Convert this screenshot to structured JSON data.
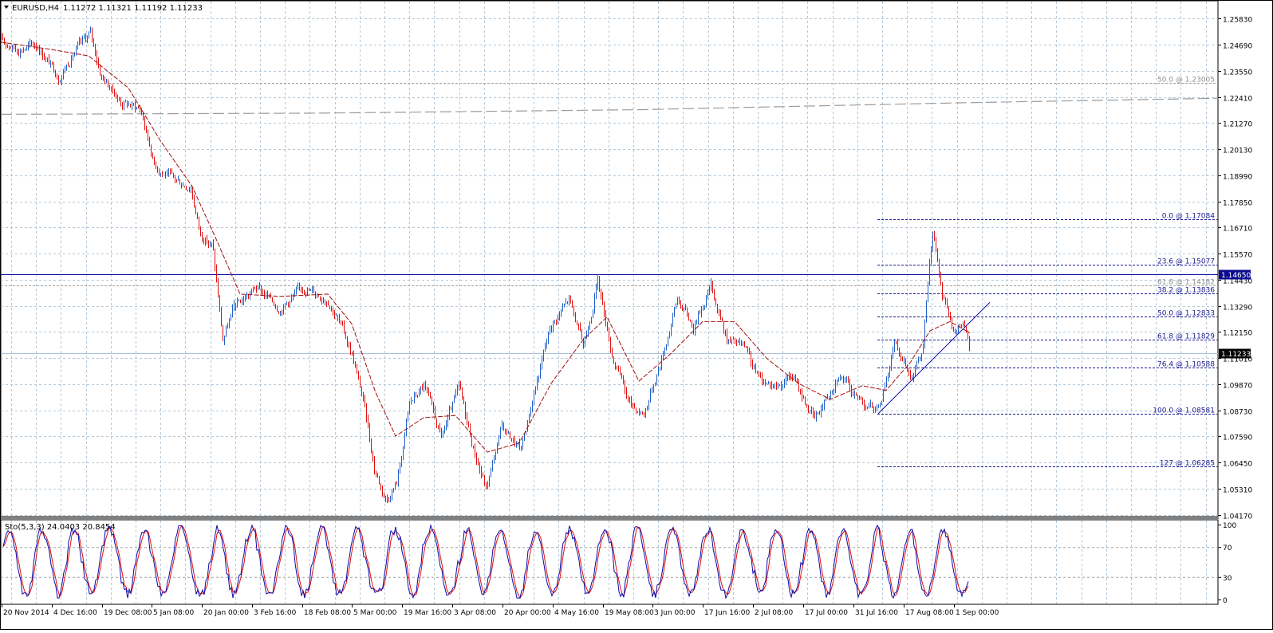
{
  "header": {
    "symbol": "EURUSD,H4",
    "ohlc": "1.11272 1.11321 1.11192 1.11233"
  },
  "indicator_header": "Sto(5,3,3) 24.0403 20.8454",
  "colors": {
    "background": "#ffffff",
    "grid": "#b4c8d8",
    "bull_candle": "#1f5fc8",
    "bear_candle": "#e01010",
    "moving_average": "#a01010",
    "support_line": "#0a0aa8",
    "fib_line": "#1a1a90",
    "price_badge": "#0a0a8c",
    "current_price_badge": "#000000",
    "stoch_main": "#0a0aa8",
    "stoch_signal": "#e01010",
    "long_ma": "#9c9c9c"
  },
  "chart_data": [
    {
      "type": "candlestick",
      "title": "",
      "symbol": "EURUSD",
      "timeframe": "H4",
      "x_tick_labels": [
        "20 Nov 2014",
        "4 Dec 16:00",
        "19 Dec 08:00",
        "5 Jan 08:00",
        "20 Jan 00:00",
        "3 Feb 16:00",
        "18 Feb 08:00",
        "5 Mar 00:00",
        "19 Mar 16:00",
        "3 Apr 08:00",
        "20 Apr 00:00",
        "4 May 16:00",
        "19 May 08:00",
        "3 Jun 00:00",
        "17 Jun 16:00",
        "2 Jul 08:00",
        "17 Jul 00:00",
        "31 Jul 16:00",
        "17 Aug 08:00",
        "1 Sep 00:00"
      ],
      "y_tick_labels": [
        "1.25830",
        "1.24690",
        "1.23550",
        "1.22410",
        "1.21270",
        "1.20130",
        "1.18990",
        "1.17850",
        "1.16710",
        "1.15570",
        "1.14430",
        "1.13290",
        "1.12150",
        "1.11010",
        "1.09870",
        "1.08730",
        "1.07590",
        "1.06450",
        "1.05310",
        "1.04170"
      ],
      "ylim": [
        1.0412,
        1.2657
      ],
      "grid": true,
      "close_path": [
        {
          "t": 0,
          "p": 1.249
        },
        {
          "t": 20,
          "p": 1.245
        },
        {
          "t": 45,
          "p": 1.247
        },
        {
          "t": 72,
          "p": 1.233
        },
        {
          "t": 95,
          "p": 1.245
        },
        {
          "t": 112,
          "p": 1.252
        },
        {
          "t": 125,
          "p": 1.234
        },
        {
          "t": 150,
          "p": 1.222
        },
        {
          "t": 175,
          "p": 1.219
        },
        {
          "t": 192,
          "p": 1.195
        },
        {
          "t": 215,
          "p": 1.188
        },
        {
          "t": 238,
          "p": 1.185
        },
        {
          "t": 250,
          "p": 1.164
        },
        {
          "t": 265,
          "p": 1.159
        },
        {
          "t": 278,
          "p": 1.118
        },
        {
          "t": 292,
          "p": 1.132
        },
        {
          "t": 320,
          "p": 1.141
        },
        {
          "t": 350,
          "p": 1.132
        },
        {
          "t": 380,
          "p": 1.141
        },
        {
          "t": 410,
          "p": 1.136
        },
        {
          "t": 425,
          "p": 1.125
        },
        {
          "t": 440,
          "p": 1.112
        },
        {
          "t": 455,
          "p": 1.09
        },
        {
          "t": 468,
          "p": 1.062
        },
        {
          "t": 483,
          "p": 1.048
        },
        {
          "t": 497,
          "p": 1.057
        },
        {
          "t": 512,
          "p": 1.09
        },
        {
          "t": 530,
          "p": 1.098
        },
        {
          "t": 552,
          "p": 1.075
        },
        {
          "t": 574,
          "p": 1.097
        },
        {
          "t": 592,
          "p": 1.071
        },
        {
          "t": 608,
          "p": 1.053
        },
        {
          "t": 628,
          "p": 1.08
        },
        {
          "t": 652,
          "p": 1.07
        },
        {
          "t": 668,
          "p": 1.095
        },
        {
          "t": 688,
          "p": 1.123
        },
        {
          "t": 712,
          "p": 1.136
        },
        {
          "t": 730,
          "p": 1.115
        },
        {
          "t": 748,
          "p": 1.144
        },
        {
          "t": 766,
          "p": 1.112
        },
        {
          "t": 788,
          "p": 1.09
        },
        {
          "t": 806,
          "p": 1.086
        },
        {
          "t": 828,
          "p": 1.11
        },
        {
          "t": 848,
          "p": 1.136
        },
        {
          "t": 868,
          "p": 1.124
        },
        {
          "t": 890,
          "p": 1.142
        },
        {
          "t": 910,
          "p": 1.118
        },
        {
          "t": 930,
          "p": 1.115
        },
        {
          "t": 950,
          "p": 1.101
        },
        {
          "t": 972,
          "p": 1.098
        },
        {
          "t": 992,
          "p": 1.102
        },
        {
          "t": 1020,
          "p": 1.083
        },
        {
          "t": 1050,
          "p": 1.104
        },
        {
          "t": 1072,
          "p": 1.093
        },
        {
          "t": 1090,
          "p": 1.089
        },
        {
          "t": 1100,
          "p": 1.087
        },
        {
          "t": 1120,
          "p": 1.116
        },
        {
          "t": 1140,
          "p": 1.103
        },
        {
          "t": 1155,
          "p": 1.112
        },
        {
          "t": 1165,
          "p": 1.155
        },
        {
          "t": 1168,
          "p": 1.166
        },
        {
          "t": 1180,
          "p": 1.137
        },
        {
          "t": 1195,
          "p": 1.12
        },
        {
          "t": 1205,
          "p": 1.127
        },
        {
          "t": 1215,
          "p": 1.1123
        }
      ],
      "moving_average": [
        {
          "t": 0,
          "p": 1.248
        },
        {
          "t": 60,
          "p": 1.245
        },
        {
          "t": 110,
          "p": 1.242
        },
        {
          "t": 160,
          "p": 1.228
        },
        {
          "t": 200,
          "p": 1.205
        },
        {
          "t": 240,
          "p": 1.185
        },
        {
          "t": 270,
          "p": 1.162
        },
        {
          "t": 300,
          "p": 1.138
        },
        {
          "t": 350,
          "p": 1.137
        },
        {
          "t": 410,
          "p": 1.138
        },
        {
          "t": 440,
          "p": 1.125
        },
        {
          "t": 470,
          "p": 1.095
        },
        {
          "t": 495,
          "p": 1.076
        },
        {
          "t": 530,
          "p": 1.084
        },
        {
          "t": 570,
          "p": 1.085
        },
        {
          "t": 610,
          "p": 1.069
        },
        {
          "t": 650,
          "p": 1.073
        },
        {
          "t": 690,
          "p": 1.099
        },
        {
          "t": 730,
          "p": 1.118
        },
        {
          "t": 760,
          "p": 1.128
        },
        {
          "t": 800,
          "p": 1.1
        },
        {
          "t": 840,
          "p": 1.112
        },
        {
          "t": 880,
          "p": 1.126
        },
        {
          "t": 920,
          "p": 1.126
        },
        {
          "t": 960,
          "p": 1.11
        },
        {
          "t": 1000,
          "p": 1.099
        },
        {
          "t": 1040,
          "p": 1.092
        },
        {
          "t": 1080,
          "p": 1.098
        },
        {
          "t": 1110,
          "p": 1.096
        },
        {
          "t": 1140,
          "p": 1.108
        },
        {
          "t": 1165,
          "p": 1.122
        },
        {
          "t": 1190,
          "p": 1.126
        },
        {
          "t": 1215,
          "p": 1.121
        }
      ],
      "long_moving_average": [
        {
          "t": 0,
          "p": 1.2165
        },
        {
          "t": 400,
          "p": 1.217
        },
        {
          "t": 800,
          "p": 1.2185
        },
        {
          "t": 1200,
          "p": 1.2215
        },
        {
          "t": 1527,
          "p": 1.2235
        }
      ],
      "horizontal_lines": [
        {
          "price": 1.1465,
          "label": "1.14650"
        },
        {
          "price": 1.11233,
          "label": "1.11233"
        }
      ],
      "fibonacci_retracement": {
        "levels": [
          {
            "text": "0.0 @ 1.17084",
            "price": 1.17084
          },
          {
            "text": "23.6 @ 1.15077",
            "price": 1.15077
          },
          {
            "text": "38.2 @ 1.13836",
            "price": 1.13836
          },
          {
            "text": "50.0 @ 1.12833",
            "price": 1.12833
          },
          {
            "text": "61.8 @ 1.11829",
            "price": 1.11829
          },
          {
            "text": "76.4 @ 1.10588",
            "price": 1.10588
          },
          {
            "text": "100.0 @ 1.08581",
            "price": 1.08581
          },
          {
            "text": "127 @ 1.06285",
            "price": 1.06285
          }
        ],
        "old_levels": [
          {
            "text": "50.0 @ 1.23005",
            "price": 1.23005
          },
          {
            "text": "61.8 @ 1.14182",
            "price": 1.14182
          }
        ]
      },
      "trendline": [
        {
          "t": 1100,
          "p": 1.0858
        },
        {
          "t": 1240,
          "p": 1.1344
        }
      ]
    },
    {
      "type": "line",
      "title": "",
      "name": "Stochastic Oscillator",
      "ylim": [
        0,
        100
      ],
      "levels": [
        30,
        70
      ],
      "y_tick_labels": [
        "100",
        "70",
        "30",
        "0"
      ],
      "values": [
        0,
        21
      ]
    }
  ]
}
